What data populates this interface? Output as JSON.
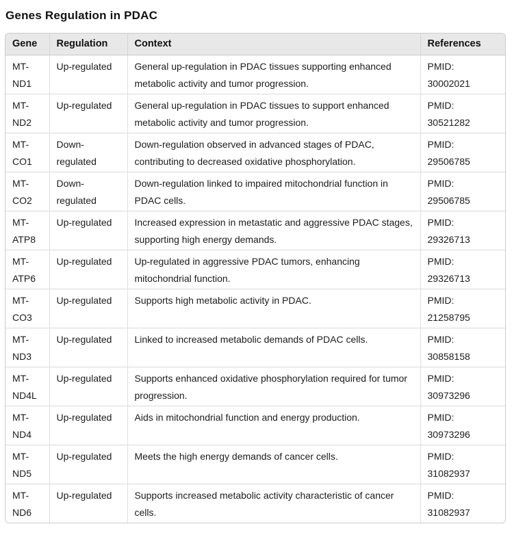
{
  "page": {
    "title": "Genes Regulation in PDAC"
  },
  "colors": {
    "header_background": "#e8e8e8",
    "grid_border": "#d9d9d9",
    "outer_border": "#cccccc",
    "text": "#1b1b1b",
    "page_background": "#ffffff"
  },
  "table": {
    "columns": [
      "Gene",
      "Regulation",
      "Context",
      "References"
    ],
    "rows": [
      {
        "gene": "MT-ND1",
        "regulation": "Up-regulated",
        "context": "General up-regulation in PDAC tissues supporting enhanced metabolic activity and tumor progression.",
        "references": "PMID: 30002021"
      },
      {
        "gene": "MT-ND2",
        "regulation": "Up-regulated",
        "context": "General up-regulation in PDAC tissues to support enhanced metabolic activity and tumor progression.",
        "references": "PMID: 30521282"
      },
      {
        "gene": "MT-CO1",
        "regulation": "Down-regulated",
        "context": "Down-regulation observed in advanced stages of PDAC, contributing to decreased oxidative phosphorylation.",
        "references": "PMID: 29506785"
      },
      {
        "gene": "MT-CO2",
        "regulation": "Down-regulated",
        "context": "Down-regulation linked to impaired mitochondrial function in PDAC cells.",
        "references": "PMID: 29506785"
      },
      {
        "gene": "MT-ATP8",
        "regulation": "Up-regulated",
        "context": "Increased expression in metastatic and aggressive PDAC stages, supporting high energy demands.",
        "references": "PMID: 29326713"
      },
      {
        "gene": "MT-ATP6",
        "regulation": "Up-regulated",
        "context": "Up-regulated in aggressive PDAC tumors, enhancing mitochondrial function.",
        "references": "PMID: 29326713"
      },
      {
        "gene": "MT-CO3",
        "regulation": "Up-regulated",
        "context": "Supports high metabolic activity in PDAC.",
        "references": "PMID: 21258795"
      },
      {
        "gene": "MT-ND3",
        "regulation": "Up-regulated",
        "context": "Linked to increased metabolic demands of PDAC cells.",
        "references": "PMID: 30858158"
      },
      {
        "gene": "MT-ND4L",
        "regulation": "Up-regulated",
        "context": "Supports enhanced oxidative phosphorylation required for tumor progression.",
        "references": "PMID: 30973296"
      },
      {
        "gene": "MT-ND4",
        "regulation": "Up-regulated",
        "context": "Aids in mitochondrial function and energy production.",
        "references": "PMID: 30973296"
      },
      {
        "gene": "MT-ND5",
        "regulation": "Up-regulated",
        "context": "Meets the high energy demands of cancer cells.",
        "references": "PMID: 31082937"
      },
      {
        "gene": "MT-ND6",
        "regulation": "Up-regulated",
        "context": "Supports increased metabolic activity characteristic of cancer cells.",
        "references": "PMID: 31082937"
      }
    ]
  }
}
